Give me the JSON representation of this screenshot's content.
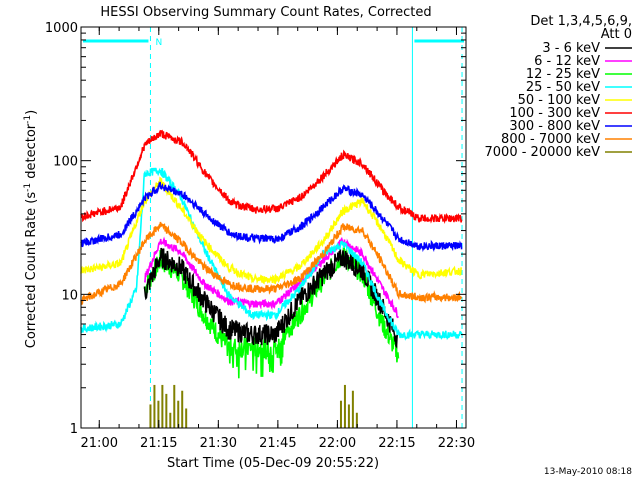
{
  "chart_data": {
    "type": "line",
    "title": "HESSI Observing Summary Count Rates, Corrected",
    "xlabel": "Start Time (05-Dec-09 20:55:22)",
    "ylabel_main": "Corrected Count Rate (s",
    "ylabel_sup1": "-1",
    "ylabel_mid": " detector",
    "ylabel_sup2": "-1",
    "ylabel_end": ")",
    "y_scale": "log",
    "ylim": [
      1,
      1000
    ],
    "xlim_minutes_after_2055_22": [
      0,
      97
    ],
    "x_ticks": [
      {
        "label": "21:00",
        "min": 4.6
      },
      {
        "label": "21:15",
        "min": 19.6
      },
      {
        "label": "21:30",
        "min": 34.6
      },
      {
        "label": "21:45",
        "min": 49.6
      },
      {
        "label": "22:00",
        "min": 64.6
      },
      {
        "label": "22:15",
        "min": 79.6
      },
      {
        "label": "22:30",
        "min": 94.6
      }
    ],
    "y_ticks": [
      {
        "label": "1",
        "value": 1
      },
      {
        "label": "10",
        "value": 10
      },
      {
        "label": "100",
        "value": 100
      },
      {
        "label": "1000",
        "value": 1000
      }
    ],
    "legend_title_1": "Det 1,3,4,5,6,9,",
    "legend_title_2": "Att 0",
    "legend_position": "outside right, top",
    "grid": false,
    "footer_date": "13-May-2010 08:18",
    "night_marker_label": "N",
    "attenuator_color": "#00ffff",
    "night_intervals_min": [
      [
        0,
        17.5
      ],
      [
        83.5,
        97
      ]
    ],
    "night_dashed_lines_min": [
      17.5,
      96
    ],
    "night_solid_lines_min": [
      83.5
    ],
    "series": [
      {
        "name": "3 - 6 keV",
        "color": "#000000",
        "x": [
          16,
          20,
          25,
          31,
          37,
          43,
          49,
          55,
          61,
          66,
          71,
          76,
          80
        ],
        "y": [
          10,
          19,
          16,
          9,
          5.5,
          5,
          5,
          9,
          14,
          19,
          15,
          8,
          4.5
        ]
      },
      {
        "name": "6 - 12 keV",
        "color": "#ff00ff",
        "x": [
          16,
          20,
          25,
          31,
          37,
          43,
          49,
          55,
          61,
          66,
          71,
          76,
          80
        ],
        "y": [
          13,
          25,
          21,
          12,
          9,
          8.5,
          8.5,
          12,
          18,
          25,
          20,
          11,
          7
        ]
      },
      {
        "name": "12 - 25 keV",
        "color": "#00ff00",
        "x": [
          16,
          20,
          25,
          31,
          37,
          43,
          49,
          55,
          61,
          66,
          71,
          76,
          80
        ],
        "y": [
          11,
          18,
          14,
          7,
          4,
          4,
          4,
          7,
          13,
          20,
          14,
          6,
          3.5
        ]
      },
      {
        "name": "25 - 50 keV",
        "color": "#00ffff",
        "x": [
          0,
          10,
          14,
          16,
          20,
          25,
          31,
          37,
          43,
          49,
          55,
          61,
          66,
          71,
          76,
          80,
          85,
          96
        ],
        "y": [
          5.5,
          6,
          11,
          80,
          85,
          55,
          22,
          10,
          7,
          7,
          11,
          20,
          24,
          17,
          8,
          5,
          5,
          5
        ]
      },
      {
        "name": "50 - 100 keV",
        "color": "#ffff00",
        "x": [
          0,
          10,
          16,
          20,
          25,
          31,
          37,
          43,
          49,
          55,
          61,
          66,
          71,
          76,
          80,
          85,
          96
        ],
        "y": [
          15,
          17,
          50,
          70,
          45,
          25,
          16,
          13,
          13,
          16,
          25,
          42,
          50,
          30,
          18,
          14,
          15
        ]
      },
      {
        "name": "100 - 300 keV",
        "color": "#ff0000",
        "x": [
          0,
          10,
          16,
          20,
          26,
          32,
          38,
          44,
          50,
          56,
          62,
          66,
          71,
          76,
          80,
          85,
          96
        ],
        "y": [
          38,
          45,
          130,
          160,
          135,
          75,
          48,
          43,
          44,
          55,
          82,
          110,
          95,
          60,
          45,
          37,
          37
        ]
      },
      {
        "name": "300 - 800 keV",
        "color": "#0000ff",
        "x": [
          0,
          10,
          16,
          20,
          26,
          32,
          38,
          44,
          50,
          56,
          62,
          66,
          71,
          76,
          80,
          85,
          96
        ],
        "y": [
          24,
          28,
          52,
          65,
          55,
          38,
          28,
          26,
          26,
          33,
          48,
          62,
          55,
          37,
          26,
          23,
          23
        ]
      },
      {
        "name": "800 - 7000 keV",
        "color": "#ff8000",
        "x": [
          0,
          10,
          16,
          20,
          25,
          31,
          37,
          43,
          49,
          55,
          61,
          66,
          71,
          76,
          80,
          85,
          96
        ],
        "y": [
          9,
          12,
          25,
          33,
          25,
          16,
          12,
          11,
          11,
          13,
          20,
          32,
          30,
          17,
          10,
          9.5,
          9.5
        ]
      },
      {
        "name": "7000 - 20000 keV",
        "color": "#808000",
        "x": [
          17.5,
          18.5,
          19.5,
          20.5,
          21.5,
          22.5,
          23.5,
          24.5,
          25.5,
          26.5,
          65.5,
          66.5,
          67.5,
          68.5,
          69.5
        ],
        "y": [
          1.5,
          2.1,
          1.6,
          2.1,
          1.8,
          1.3,
          2.1,
          1.6,
          1.9,
          1.4,
          1.6,
          2.1,
          1.5,
          1.9,
          1.3
        ]
      }
    ]
  }
}
